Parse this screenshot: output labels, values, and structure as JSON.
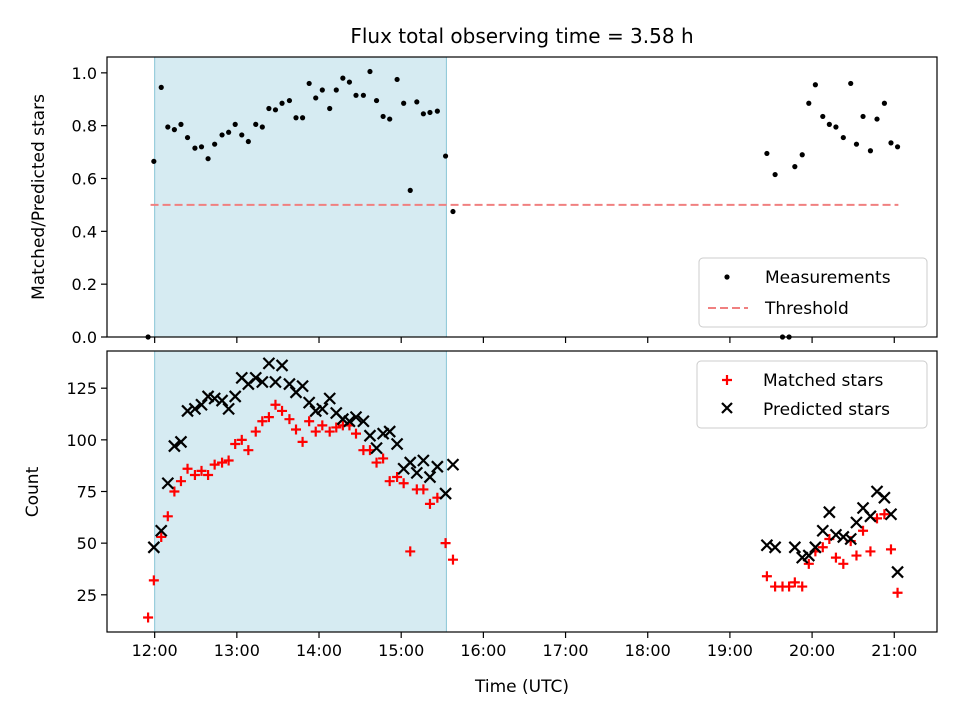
{
  "colors": {
    "measurements": "#000000",
    "threshold": "#f08080",
    "matched": "#ff0000",
    "predicted": "#000000",
    "span": "#add8e6"
  },
  "chart_data": [
    {
      "type": "scatter",
      "title": "Flux total observing time = 3.58 h",
      "xlabel": "",
      "ylabel": "Matched/Predicted stars",
      "xlim_hours": [
        11.42,
        21.52
      ],
      "ylim": [
        0,
        1.06
      ],
      "yticks": [
        "0.0",
        "0.2",
        "0.4",
        "0.6",
        "0.8",
        "1.0"
      ],
      "grid": false,
      "legend_position": "lower-right",
      "highlight_span_hours": [
        12.0,
        15.55
      ],
      "threshold": {
        "name": "Threshold",
        "y": 0.5,
        "x_range_hours": [
          11.95,
          21.05
        ]
      },
      "series": [
        {
          "name": "Measurements",
          "marker": "dot",
          "points": [
            [
              11.92,
              0.0
            ],
            [
              11.99,
              0.665
            ],
            [
              12.08,
              0.945
            ],
            [
              12.16,
              0.795
            ],
            [
              12.24,
              0.785
            ],
            [
              12.32,
              0.805
            ],
            [
              12.4,
              0.755
            ],
            [
              12.49,
              0.715
            ],
            [
              12.57,
              0.72
            ],
            [
              12.65,
              0.675
            ],
            [
              12.73,
              0.73
            ],
            [
              12.82,
              0.765
            ],
            [
              12.9,
              0.775
            ],
            [
              12.98,
              0.805
            ],
            [
              13.06,
              0.765
            ],
            [
              13.14,
              0.74
            ],
            [
              13.23,
              0.805
            ],
            [
              13.31,
              0.795
            ],
            [
              13.39,
              0.865
            ],
            [
              13.47,
              0.86
            ],
            [
              13.55,
              0.885
            ],
            [
              13.64,
              0.895
            ],
            [
              13.72,
              0.83
            ],
            [
              13.8,
              0.83
            ],
            [
              13.88,
              0.96
            ],
            [
              13.96,
              0.905
            ],
            [
              14.04,
              0.935
            ],
            [
              14.13,
              0.865
            ],
            [
              14.21,
              0.935
            ],
            [
              14.29,
              0.98
            ],
            [
              14.37,
              0.965
            ],
            [
              14.45,
              0.915
            ],
            [
              14.54,
              0.915
            ],
            [
              14.62,
              1.005
            ],
            [
              14.7,
              0.895
            ],
            [
              14.78,
              0.835
            ],
            [
              14.86,
              0.825
            ],
            [
              14.95,
              0.975
            ],
            [
              15.03,
              0.885
            ],
            [
              15.11,
              0.555
            ],
            [
              15.19,
              0.89
            ],
            [
              15.27,
              0.845
            ],
            [
              15.35,
              0.85
            ],
            [
              15.44,
              0.855
            ],
            [
              15.54,
              0.685
            ],
            [
              15.63,
              0.475
            ],
            [
              19.45,
              0.695
            ],
            [
              19.55,
              0.615
            ],
            [
              19.64,
              0.0
            ],
            [
              19.72,
              0.0
            ],
            [
              19.79,
              0.645
            ],
            [
              19.88,
              0.69
            ],
            [
              19.96,
              0.885
            ],
            [
              20.04,
              0.955
            ],
            [
              20.13,
              0.835
            ],
            [
              20.21,
              0.805
            ],
            [
              20.29,
              0.795
            ],
            [
              20.38,
              0.755
            ],
            [
              20.47,
              0.96
            ],
            [
              20.54,
              0.73
            ],
            [
              20.62,
              0.835
            ],
            [
              20.71,
              0.705
            ],
            [
              20.79,
              0.825
            ],
            [
              20.88,
              0.885
            ],
            [
              20.96,
              0.735
            ],
            [
              21.04,
              0.72
            ]
          ]
        }
      ],
      "x_ticks": [
        "12:00",
        "13:00",
        "14:00",
        "15:00",
        "16:00",
        "17:00",
        "18:00",
        "19:00",
        "20:00",
        "21:00"
      ]
    },
    {
      "type": "scatter",
      "title": "",
      "xlabel": "Time (UTC)",
      "ylabel": "Count",
      "xlim_hours": [
        11.42,
        21.52
      ],
      "ylim": [
        7,
        143
      ],
      "yticks": [
        "25",
        "50",
        "75",
        "100",
        "125"
      ],
      "grid": false,
      "legend_position": "upper-right",
      "highlight_span_hours": [
        12.0,
        15.55
      ],
      "x_ticks": [
        "12:00",
        "13:00",
        "14:00",
        "15:00",
        "16:00",
        "17:00",
        "18:00",
        "19:00",
        "20:00",
        "21:00"
      ],
      "series": [
        {
          "name": "Matched stars",
          "marker": "plus",
          "points": [
            [
              11.92,
              14
            ],
            [
              11.99,
              32
            ],
            [
              12.08,
              53
            ],
            [
              12.16,
              63
            ],
            [
              12.24,
              75
            ],
            [
              12.32,
              80
            ],
            [
              12.4,
              86
            ],
            [
              12.49,
              83
            ],
            [
              12.57,
              85
            ],
            [
              12.65,
              83
            ],
            [
              12.73,
              88
            ],
            [
              12.82,
              89
            ],
            [
              12.9,
              90
            ],
            [
              12.98,
              98
            ],
            [
              13.06,
              100
            ],
            [
              13.14,
              95
            ],
            [
              13.23,
              104
            ],
            [
              13.31,
              109
            ],
            [
              13.39,
              111
            ],
            [
              13.47,
              117
            ],
            [
              13.55,
              114
            ],
            [
              13.64,
              110
            ],
            [
              13.72,
              105
            ],
            [
              13.8,
              99
            ],
            [
              13.88,
              109
            ],
            [
              13.96,
              104
            ],
            [
              14.04,
              107
            ],
            [
              14.13,
              104
            ],
            [
              14.21,
              106
            ],
            [
              14.29,
              107
            ],
            [
              14.37,
              107
            ],
            [
              14.45,
              103
            ],
            [
              14.54,
              95
            ],
            [
              14.62,
              95
            ],
            [
              14.7,
              89
            ],
            [
              14.78,
              91
            ],
            [
              14.86,
              80
            ],
            [
              14.95,
              82
            ],
            [
              15.03,
              79
            ],
            [
              15.11,
              46
            ],
            [
              15.19,
              76
            ],
            [
              15.27,
              76
            ],
            [
              15.35,
              69
            ],
            [
              15.44,
              72
            ],
            [
              15.54,
              50
            ],
            [
              15.63,
              42
            ],
            [
              19.45,
              34
            ],
            [
              19.55,
              29
            ],
            [
              19.64,
              29
            ],
            [
              19.72,
              29
            ],
            [
              19.79,
              31
            ],
            [
              19.88,
              29
            ],
            [
              19.96,
              40
            ],
            [
              20.04,
              46
            ],
            [
              20.13,
              48
            ],
            [
              20.21,
              52
            ],
            [
              20.29,
              43
            ],
            [
              20.38,
              40
            ],
            [
              20.47,
              51
            ],
            [
              20.54,
              44
            ],
            [
              20.62,
              56
            ],
            [
              20.71,
              46
            ],
            [
              20.79,
              62
            ],
            [
              20.88,
              64
            ],
            [
              20.96,
              47
            ],
            [
              21.04,
              26
            ]
          ]
        },
        {
          "name": "Predicted stars",
          "marker": "cross",
          "points": [
            [
              11.99,
              48
            ],
            [
              12.08,
              56
            ],
            [
              12.16,
              79
            ],
            [
              12.24,
              97
            ],
            [
              12.32,
              99
            ],
            [
              12.4,
              114
            ],
            [
              12.49,
              115
            ],
            [
              12.57,
              117
            ],
            [
              12.65,
              121
            ],
            [
              12.73,
              120
            ],
            [
              12.82,
              119
            ],
            [
              12.9,
              115
            ],
            [
              12.98,
              121
            ],
            [
              13.06,
              130
            ],
            [
              13.14,
              127
            ],
            [
              13.23,
              130
            ],
            [
              13.31,
              128
            ],
            [
              13.39,
              137
            ],
            [
              13.47,
              128
            ],
            [
              13.55,
              136
            ],
            [
              13.64,
              127
            ],
            [
              13.72,
              123
            ],
            [
              13.8,
              126
            ],
            [
              13.88,
              118
            ],
            [
              13.96,
              114
            ],
            [
              14.04,
              115
            ],
            [
              14.13,
              120
            ],
            [
              14.21,
              113
            ],
            [
              14.29,
              110
            ],
            [
              14.37,
              109
            ],
            [
              14.45,
              111
            ],
            [
              14.54,
              109
            ],
            [
              14.62,
              102
            ],
            [
              14.7,
              96
            ],
            [
              14.78,
              103
            ],
            [
              14.86,
              104
            ],
            [
              14.95,
              98
            ],
            [
              15.03,
              86
            ],
            [
              15.11,
              89
            ],
            [
              15.19,
              84
            ],
            [
              15.27,
              90
            ],
            [
              15.35,
              82
            ],
            [
              15.44,
              87
            ],
            [
              15.54,
              74
            ],
            [
              15.63,
              88
            ],
            [
              19.45,
              49
            ],
            [
              19.55,
              48
            ],
            [
              19.79,
              48
            ],
            [
              19.88,
              43
            ],
            [
              19.96,
              44
            ],
            [
              20.04,
              48
            ],
            [
              20.13,
              56
            ],
            [
              20.21,
              65
            ],
            [
              20.29,
              54
            ],
            [
              20.38,
              53
            ],
            [
              20.47,
              52
            ],
            [
              20.54,
              60
            ],
            [
              20.62,
              67
            ],
            [
              20.71,
              63
            ],
            [
              20.79,
              75
            ],
            [
              20.88,
              72
            ],
            [
              20.96,
              64
            ],
            [
              21.04,
              36
            ]
          ]
        }
      ]
    }
  ]
}
